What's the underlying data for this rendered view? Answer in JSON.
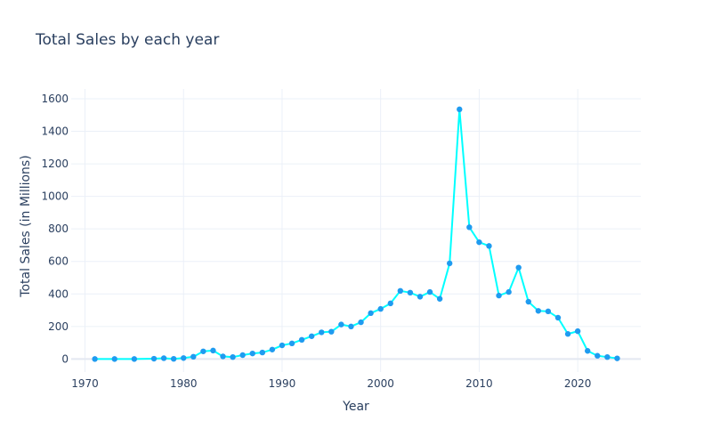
{
  "chart_data": {
    "type": "line",
    "title": "Total Sales by each year",
    "xlabel": "Year",
    "ylabel": "Total Sales (in Millions)",
    "xlim": [
      1968.6,
      2026.4
    ],
    "ylim": [
      -80,
      1660
    ],
    "xticks": [
      1970,
      1980,
      1990,
      2000,
      2010,
      2020
    ],
    "yticks": [
      0,
      200,
      400,
      600,
      800,
      1000,
      1200,
      1400,
      1600
    ],
    "grid": true,
    "line_color": "#00ffff",
    "marker_color": "#1f9bf0",
    "series": [
      {
        "x": [
          1971,
          1973,
          1975,
          1977,
          1978,
          1979,
          1980,
          1981,
          1982,
          1983,
          1984,
          1985,
          1986,
          1987,
          1988,
          1989,
          1990,
          1991,
          1992,
          1993,
          1994,
          1995,
          1996,
          1997,
          1998,
          1999,
          2000,
          2001,
          2002,
          2003,
          2004,
          2005,
          2006,
          2007,
          2008,
          2009,
          2010,
          2011,
          2012,
          2013,
          2014,
          2015,
          2016,
          2017,
          2018,
          2019,
          2020,
          2021,
          2022,
          2023,
          2024
        ],
        "y": [
          0,
          0,
          0,
          2,
          5,
          1,
          6,
          14,
          47,
          52,
          16,
          12,
          24,
          34,
          40,
          58,
          84,
          96,
          118,
          140,
          164,
          168,
          212,
          200,
          226,
          282,
          308,
          342,
          419,
          408,
          383,
          412,
          370,
          588,
          1535,
          810,
          718,
          695,
          390,
          412,
          562,
          352,
          296,
          293,
          254,
          154,
          171,
          50,
          20,
          12,
          4
        ]
      }
    ]
  }
}
